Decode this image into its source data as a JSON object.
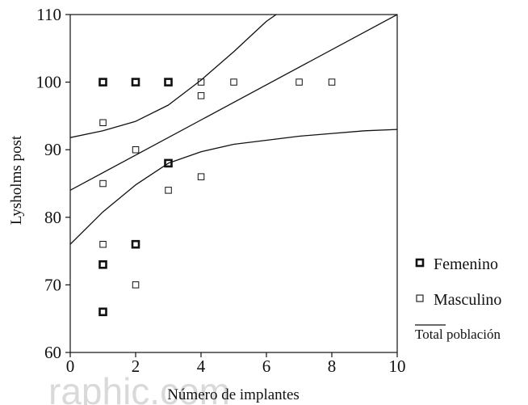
{
  "chart_data": {
    "type": "scatter",
    "xlabel": "Número de implantes",
    "ylabel": "Lysholms post",
    "xlim": [
      0,
      10
    ],
    "ylim": [
      60,
      110
    ],
    "xticks": [
      0,
      2,
      4,
      6,
      8,
      10
    ],
    "yticks": [
      60,
      70,
      80,
      90,
      100,
      110
    ],
    "grid": false,
    "legend_position": "right",
    "series": [
      {
        "name": "Femenino",
        "marker": "square-bold",
        "points": [
          [
            1,
            100
          ],
          [
            2,
            100
          ],
          [
            3,
            100
          ],
          [
            3,
            88
          ],
          [
            2,
            76
          ],
          [
            1,
            73
          ],
          [
            1,
            66
          ]
        ]
      },
      {
        "name": "Masculino",
        "marker": "square-thin",
        "points": [
          [
            1,
            100
          ],
          [
            2,
            100
          ],
          [
            3,
            100
          ],
          [
            4,
            100
          ],
          [
            5,
            100
          ],
          [
            7,
            100
          ],
          [
            8,
            100
          ],
          [
            4,
            98
          ],
          [
            1,
            94
          ],
          [
            2,
            90
          ],
          [
            3,
            88
          ],
          [
            1,
            85
          ],
          [
            4,
            86
          ],
          [
            3,
            84
          ],
          [
            1,
            76
          ],
          [
            2,
            76
          ],
          [
            2,
            70
          ],
          [
            1,
            66
          ]
        ]
      }
    ],
    "regression": {
      "name": "Total población",
      "intercept": 84.0,
      "slope": 2.6
    },
    "confidence_band": {
      "upper": [
        [
          0,
          91.8
        ],
        [
          1,
          92.8
        ],
        [
          2,
          94.2
        ],
        [
          3,
          96.6
        ],
        [
          4,
          100.3
        ],
        [
          5,
          104.5
        ],
        [
          6,
          109.0
        ],
        [
          6.3,
          110.0
        ]
      ],
      "lower": [
        [
          0,
          76.0
        ],
        [
          1,
          80.8
        ],
        [
          2,
          84.8
        ],
        [
          3,
          88.0
        ],
        [
          4,
          89.7
        ],
        [
          5,
          90.8
        ],
        [
          6,
          91.4
        ],
        [
          7,
          92.0
        ],
        [
          8,
          92.4
        ],
        [
          9,
          92.8
        ],
        [
          10,
          93.0
        ]
      ]
    }
  },
  "watermark": "raphic.com"
}
